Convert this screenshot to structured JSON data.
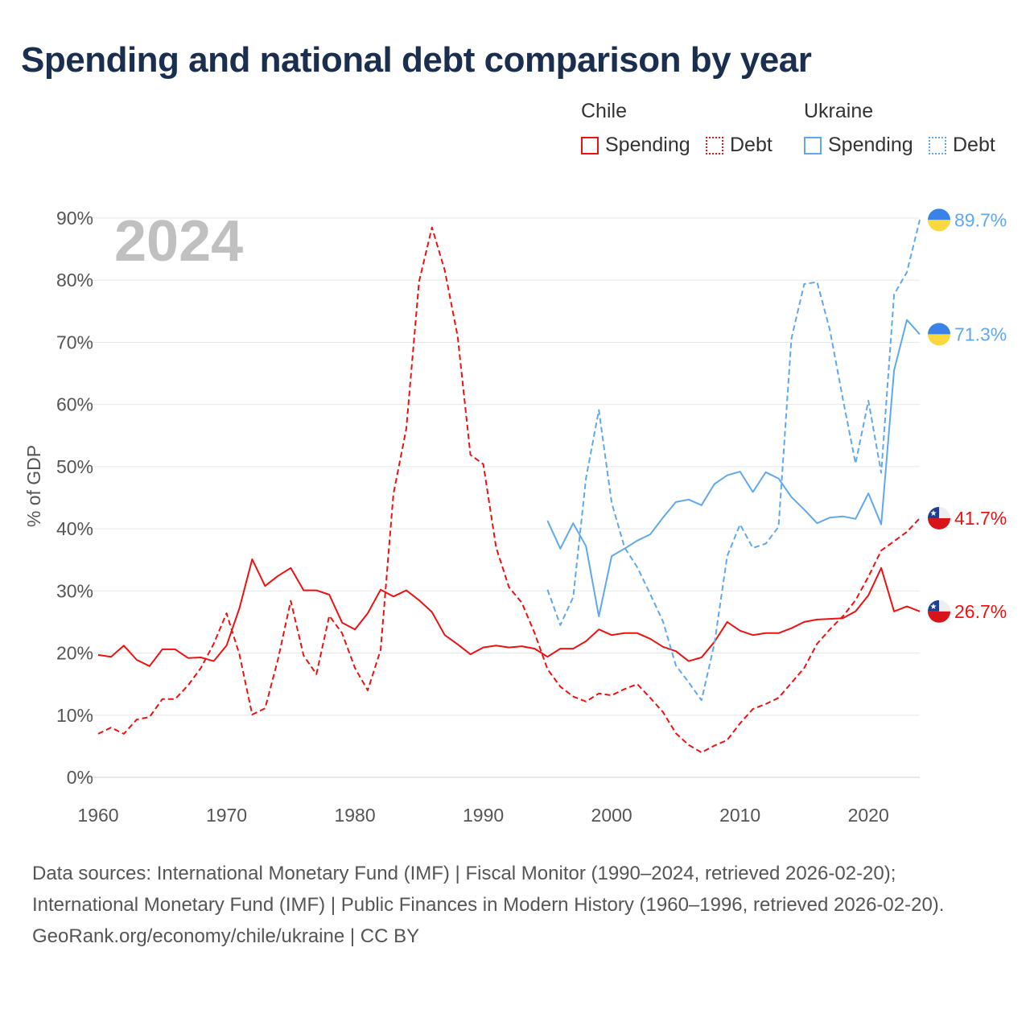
{
  "title": "Spending and national debt comparison by year",
  "legend": {
    "groups": [
      {
        "country": "Chile",
        "items": [
          {
            "label": "Spending",
            "style": "solid"
          },
          {
            "label": "Debt",
            "style": "dotted"
          }
        ],
        "color": "#ee1111"
      },
      {
        "country": "Ukraine",
        "items": [
          {
            "label": "Spending",
            "style": "solid"
          },
          {
            "label": "Debt",
            "style": "dotted"
          }
        ],
        "color": "#5fa8ee"
      }
    ]
  },
  "footer": {
    "sources": "Data sources: International Monetary Fund (IMF) | Fiscal Monitor (1990–2024, retrieved 2026-02-20); International Monetary Fund (IMF) | Public Finances in Modern History (1960–1996, retrieved 2026-02-20).",
    "credit": "GeoRank.org/economy/chile/ukraine | CC BY"
  },
  "chart_data": {
    "type": "line",
    "title": "Spending and national debt comparison by year",
    "year_label": "2024",
    "ylabel": "% of GDP",
    "xlabel": "",
    "xlim": [
      1960,
      2024
    ],
    "ylim": [
      0,
      90
    ],
    "xticks": [
      "1960",
      "1970",
      "1980",
      "1990",
      "2000",
      "2010",
      "2020"
    ],
    "yticks": [
      "0%",
      "10%",
      "20%",
      "30%",
      "40%",
      "50%",
      "60%",
      "70%",
      "80%",
      "90%"
    ],
    "grid": true,
    "series": [
      {
        "name": "Chile Spending",
        "color": "#ee1111",
        "dash": false,
        "start": 1960,
        "end_label": "26.7%",
        "values": [
          19.7,
          19.4,
          21.2,
          18.9,
          17.9,
          20.6,
          20.6,
          19.2,
          19.3,
          18.7,
          21.2,
          27.2,
          35.1,
          30.8,
          32.4,
          33.7,
          30.1,
          30.1,
          29.4,
          24.9,
          23.8,
          26.4,
          30.2,
          29.1,
          30.1,
          28.5,
          26.6,
          22.9,
          21.4,
          19.8,
          20.9,
          21.2,
          20.9,
          21.1,
          20.7,
          19.4,
          20.7,
          20.7,
          21.9,
          23.8,
          22.9,
          23.2,
          23.2,
          22.3,
          21.0,
          20.3,
          18.7,
          19.3,
          21.8,
          25.0,
          23.6,
          22.9,
          23.2,
          23.2,
          24.0,
          25.0,
          25.4,
          25.5,
          25.6,
          26.7,
          29.3,
          33.7,
          26.7,
          27.5,
          26.7
        ]
      },
      {
        "name": "Chile Debt",
        "color": "#ee1111",
        "dash": true,
        "start": 1960,
        "end_label": "41.7%",
        "values": [
          7.0,
          8.0,
          7.0,
          9.3,
          9.7,
          12.6,
          12.6,
          14.8,
          17.6,
          21.5,
          26.4,
          19.8,
          10.1,
          11.1,
          18.9,
          28.4,
          19.6,
          16.6,
          26.0,
          23.2,
          17.6,
          14.0,
          20.5,
          45.6,
          56.1,
          79.8,
          88.5,
          81.6,
          71.0,
          51.9,
          50.4,
          37.0,
          30.6,
          28.1,
          23.2,
          17.4,
          14.6,
          13.0,
          12.2,
          13.5,
          13.2,
          14.2,
          15.0,
          12.8,
          10.5,
          7.1,
          5.2,
          4.0,
          5.1,
          6.0,
          8.7,
          11.0,
          11.8,
          12.8,
          15.2,
          17.6,
          21.5,
          23.8,
          25.9,
          28.5,
          32.3,
          36.5,
          38.0,
          39.5,
          41.7
        ]
      },
      {
        "name": "Ukraine Spending",
        "color": "#5fa8ee",
        "dash": false,
        "start": 1995,
        "end_label": "71.3%",
        "values": [
          41.3,
          36.8,
          40.9,
          37.2,
          25.9,
          35.6,
          36.8,
          38.1,
          39.1,
          41.8,
          44.3,
          44.7,
          43.8,
          47.2,
          48.6,
          49.2,
          45.9,
          49.1,
          48.1,
          45.1,
          43.1,
          40.9,
          41.8,
          42.0,
          41.6,
          45.7,
          40.7,
          65.5,
          73.6,
          71.3
        ]
      },
      {
        "name": "Ukraine Debt",
        "color": "#5fa8ee",
        "dash": true,
        "start": 1995,
        "end_label": "89.7%",
        "values": [
          30.2,
          24.5,
          29.0,
          48.1,
          59.1,
          44.2,
          37.0,
          33.8,
          29.5,
          25.1,
          18.0,
          15.3,
          12.4,
          21.5,
          35.6,
          40.7,
          36.9,
          37.6,
          40.3,
          70.6,
          79.4,
          79.7,
          72.0,
          61.0,
          50.5,
          60.6,
          49.0,
          77.7,
          81.3,
          89.7
        ]
      }
    ]
  }
}
